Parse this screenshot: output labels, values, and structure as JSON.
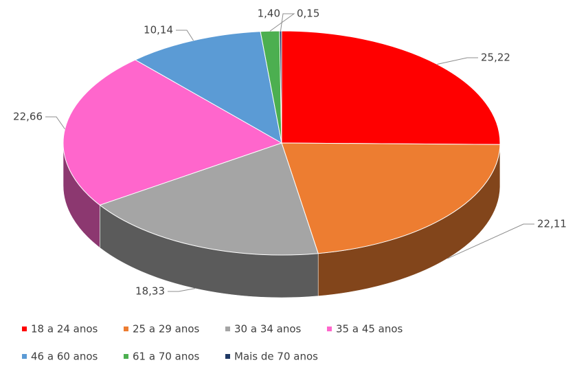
{
  "chart_data": {
    "type": "pie3d",
    "categories": [
      "18 a 24 anos",
      "25 a 29 anos",
      "30 a 34 anos",
      "35 a 45 anos",
      "46 a 60 anos",
      "61 a 70 anos",
      "Mais de 70 anos"
    ],
    "values": [
      25.22,
      22.11,
      18.33,
      22.66,
      10.14,
      1.4,
      0.15
    ],
    "value_labels": [
      "25,22",
      "22,11",
      "18,33",
      "22,66",
      "10,14",
      "1,40",
      "0,15"
    ],
    "colors": [
      "#ff0000",
      "#ed7d31",
      "#a5a5a5",
      "#ff66cc",
      "#5b9bd5",
      "#4caf50",
      "#1f3864"
    ],
    "legend": "bottom"
  }
}
